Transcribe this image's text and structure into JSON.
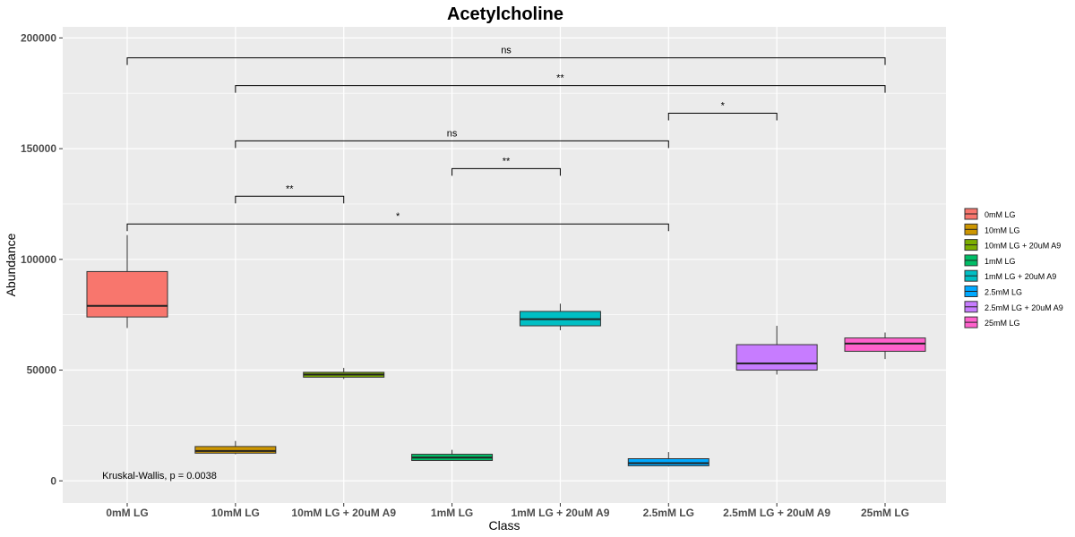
{
  "chart_data": {
    "type": "box",
    "title": "Acetylcholine",
    "xlabel": "Class",
    "ylabel": "Abundance",
    "ylim": [
      -10000,
      205000
    ],
    "yticks": [
      0,
      50000,
      100000,
      150000,
      200000
    ],
    "ytick_labels": [
      "0",
      "50000",
      "100000",
      "150000",
      "200000"
    ],
    "grid": true,
    "legend_position": "right",
    "categories": [
      "0mM LG",
      "10mM LG",
      "10mM LG + 20uM A9",
      "1mM LG",
      "1mM LG + 20uM A9",
      "2.5mM LG",
      "2.5mM LG + 20uM A9",
      "25mM LG"
    ],
    "colors": [
      "#F8766D",
      "#CD9600",
      "#7CAE00",
      "#00BE67",
      "#00BFC4",
      "#00A9FF",
      "#C77CFF",
      "#FF61CC"
    ],
    "boxes": [
      {
        "min": 69000,
        "q1": 74000,
        "median": 79000,
        "q3": 94500,
        "max": 111000
      },
      {
        "min": 12000,
        "q1": 12500,
        "median": 13500,
        "q3": 15500,
        "max": 18000
      },
      {
        "min": 46000,
        "q1": 46800,
        "median": 48000,
        "q3": 49000,
        "max": 51000
      },
      {
        "min": 9000,
        "q1": 9200,
        "median": 10500,
        "q3": 12000,
        "max": 14000
      },
      {
        "min": 68000,
        "q1": 70000,
        "median": 73000,
        "q3": 76500,
        "max": 80000
      },
      {
        "min": 6500,
        "q1": 6800,
        "median": 8000,
        "q3": 10000,
        "max": 13000
      },
      {
        "min": 48000,
        "q1": 50000,
        "median": 53000,
        "q3": 61500,
        "max": 70000
      },
      {
        "min": 55000,
        "q1": 58500,
        "median": 62000,
        "q3": 64500,
        "max": 67000
      }
    ],
    "comparisons": [
      {
        "from": 0,
        "to": 7,
        "y": 191000,
        "label": "ns"
      },
      {
        "from": 1,
        "to": 7,
        "y": 178500,
        "label": "**"
      },
      {
        "from": 5,
        "to": 6,
        "y": 166000,
        "label": "*"
      },
      {
        "from": 1,
        "to": 5,
        "y": 153500,
        "label": "ns"
      },
      {
        "from": 3,
        "to": 4,
        "y": 141000,
        "label": "**"
      },
      {
        "from": 1,
        "to": 2,
        "y": 128500,
        "label": "**"
      },
      {
        "from": 0,
        "to": 5,
        "y": 116000,
        "label": "*"
      }
    ],
    "annotation": "Kruskal-Wallis, p = 0.0038",
    "annotation_pos": {
      "x": 0,
      "y": 1000
    }
  }
}
